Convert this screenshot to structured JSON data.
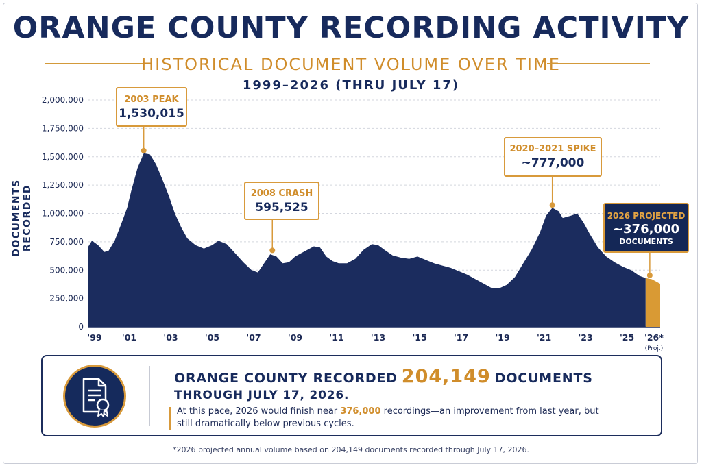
{
  "title": "ORANGE COUNTY RECORDING ACTIVITY",
  "subtitle": "HISTORICAL DOCUMENT VOLUME OVER TIME",
  "date_range": "1999–2026 (THRU JULY 17)",
  "colors": {
    "navy": "#172a5c",
    "orange": "#d89a3b",
    "area": "#1b2c5e",
    "projected": "#d99a34"
  },
  "chart_data": {
    "type": "area",
    "ylabel": "DOCUMENTS RECORDED",
    "ylim": [
      0,
      2000000
    ],
    "yticks": [
      0,
      250000,
      500000,
      750000,
      1000000,
      1250000,
      1500000,
      1750000,
      2000000
    ],
    "ytick_labels": [
      "0",
      "250,000",
      "500,000",
      "750,000",
      "1,000,000",
      "1,250,000",
      "1,500,000",
      "1,750,000",
      "2,000,000"
    ],
    "xlim": [
      1999,
      2026.6
    ],
    "xticks": [
      1999,
      2001,
      2003,
      2005,
      2007,
      2009,
      2011,
      2013,
      2015,
      2017,
      2019,
      2021,
      2023,
      2025,
      2026.3
    ],
    "xtick_labels": [
      "'99",
      "'01",
      "'03",
      "'05",
      "'07",
      "'09",
      "'11",
      "'13",
      "'15",
      "'17",
      "'19",
      "'21",
      "'23",
      "'25",
      "'26*"
    ],
    "x_note": "(Proj.)",
    "grid": true,
    "series": [
      {
        "kind": "historical",
        "points": [
          [
            1999.0,
            700000
          ],
          [
            1999.2,
            760000
          ],
          [
            1999.5,
            720000
          ],
          [
            1999.8,
            660000
          ],
          [
            2000.0,
            670000
          ],
          [
            2000.3,
            760000
          ],
          [
            2000.6,
            900000
          ],
          [
            2000.9,
            1050000
          ],
          [
            2001.1,
            1200000
          ],
          [
            2001.4,
            1400000
          ],
          [
            2001.7,
            1530015
          ],
          [
            2002.0,
            1520000
          ],
          [
            2002.3,
            1430000
          ],
          [
            2002.6,
            1300000
          ],
          [
            2002.9,
            1160000
          ],
          [
            2003.2,
            1000000
          ],
          [
            2003.5,
            880000
          ],
          [
            2003.8,
            780000
          ],
          [
            2004.2,
            720000
          ],
          [
            2004.6,
            690000
          ],
          [
            2005.0,
            720000
          ],
          [
            2005.3,
            760000
          ],
          [
            2005.7,
            730000
          ],
          [
            2006.1,
            650000
          ],
          [
            2006.5,
            570000
          ],
          [
            2006.9,
            500000
          ],
          [
            2007.2,
            480000
          ],
          [
            2007.5,
            560000
          ],
          [
            2007.8,
            640000
          ],
          [
            2008.1,
            620000
          ],
          [
            2008.4,
            560000
          ],
          [
            2008.7,
            570000
          ],
          [
            2009.0,
            620000
          ],
          [
            2009.3,
            650000
          ],
          [
            2009.6,
            680000
          ],
          [
            2009.9,
            710000
          ],
          [
            2010.2,
            700000
          ],
          [
            2010.5,
            620000
          ],
          [
            2010.8,
            580000
          ],
          [
            2011.1,
            560000
          ],
          [
            2011.5,
            560000
          ],
          [
            2011.9,
            600000
          ],
          [
            2012.3,
            680000
          ],
          [
            2012.7,
            730000
          ],
          [
            2013.0,
            720000
          ],
          [
            2013.3,
            680000
          ],
          [
            2013.7,
            630000
          ],
          [
            2014.1,
            610000
          ],
          [
            2014.5,
            600000
          ],
          [
            2014.9,
            620000
          ],
          [
            2015.3,
            590000
          ],
          [
            2015.7,
            560000
          ],
          [
            2016.1,
            540000
          ],
          [
            2016.5,
            520000
          ],
          [
            2016.9,
            490000
          ],
          [
            2017.3,
            460000
          ],
          [
            2017.7,
            420000
          ],
          [
            2018.1,
            380000
          ],
          [
            2018.5,
            340000
          ],
          [
            2018.9,
            345000
          ],
          [
            2019.2,
            370000
          ],
          [
            2019.6,
            440000
          ],
          [
            2020.0,
            560000
          ],
          [
            2020.4,
            680000
          ],
          [
            2020.8,
            830000
          ],
          [
            2021.1,
            980000
          ],
          [
            2021.4,
            1050000
          ],
          [
            2021.7,
            1020000
          ],
          [
            2021.9,
            960000
          ],
          [
            2022.3,
            980000
          ],
          [
            2022.6,
            1000000
          ],
          [
            2022.9,
            920000
          ],
          [
            2023.2,
            820000
          ],
          [
            2023.6,
            700000
          ],
          [
            2024.0,
            620000
          ],
          [
            2024.4,
            570000
          ],
          [
            2024.8,
            530000
          ],
          [
            2025.2,
            500000
          ],
          [
            2025.6,
            450000
          ],
          [
            2025.9,
            430000
          ]
        ]
      },
      {
        "kind": "projected",
        "points": [
          [
            2025.9,
            430000
          ],
          [
            2026.2,
            420000
          ],
          [
            2026.6,
            380000
          ]
        ]
      }
    ],
    "annotations": [
      {
        "x": 2001.7,
        "y": 1530015,
        "label": "2003 PEAK",
        "value": "1,530,015"
      },
      {
        "x": 2007.9,
        "y": 650000,
        "label": "2008 CRASH",
        "value": "595,525"
      },
      {
        "x": 2021.4,
        "y": 1050000,
        "label": "2020–2021 SPIKE",
        "value": "~777,000"
      },
      {
        "x": 2026.1,
        "y": 430000,
        "label": "2026 PROJECTED",
        "value": "~376,000",
        "unit": "DOCUMENTS"
      }
    ]
  },
  "summary": {
    "line1_pre": "ORANGE COUNTY RECORDED",
    "line1_number": "204,149",
    "line1_post": "DOCUMENTS",
    "line2": "THROUGH JULY 17, 2026.",
    "body_pre": "At this pace, 2026 would finish near ",
    "body_highlight": "376,000",
    "body_post": " recordings—an improvement from last year, but still dramatically below previous cycles."
  },
  "footnote": "*2026 projected annual volume based on 204,149 documents recorded through July 17, 2026."
}
